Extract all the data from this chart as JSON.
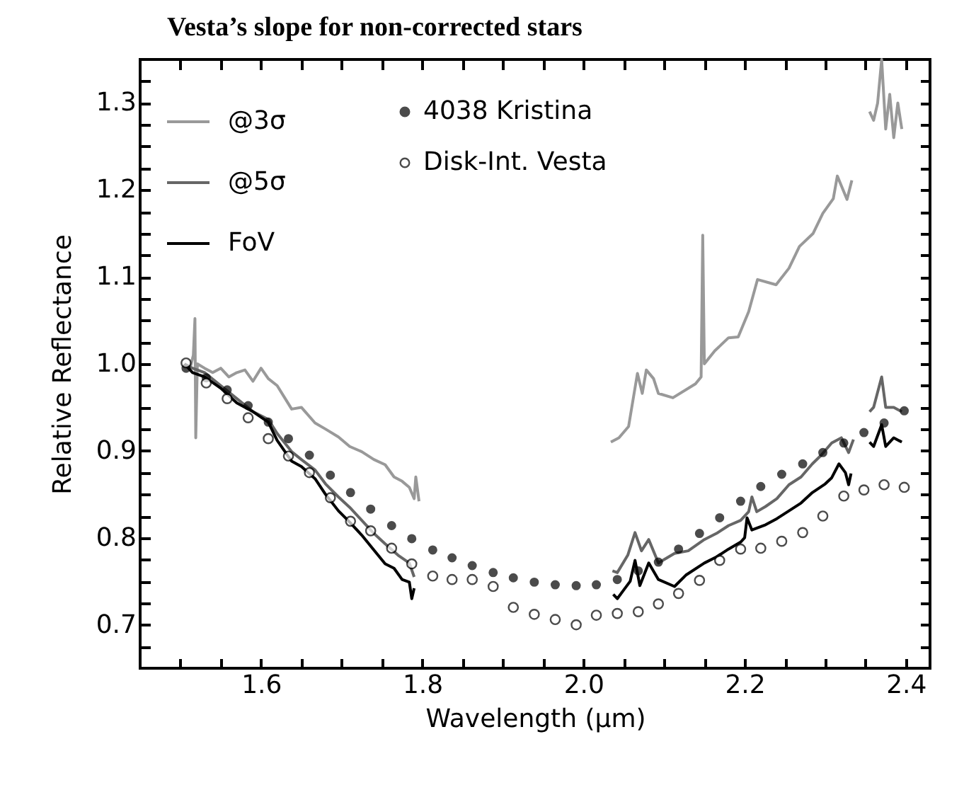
{
  "chart_data": {
    "type": "line",
    "title": "Vesta’s slope for non-corrected stars",
    "xlabel": "Wavelength (μm)",
    "ylabel": "Relative Reflectance",
    "xlim": [
      1.45,
      2.43
    ],
    "ylim": [
      0.65,
      1.35
    ],
    "xticks": [
      {
        "value": 1.5,
        "label": null
      },
      {
        "value": 1.55,
        "label": null
      },
      1.6,
      {
        "value": 1.65,
        "label": null
      },
      {
        "value": 1.7,
        "label": null
      },
      {
        "value": 1.75,
        "label": null
      },
      1.8,
      {
        "value": 1.85,
        "label": null
      },
      {
        "value": 1.9,
        "label": null
      },
      {
        "value": 1.95,
        "label": null
      },
      {
        "value": 2,
        "label": "2.0"
      },
      {
        "value": 2.05,
        "label": null
      },
      {
        "value": 2.1,
        "label": null
      },
      {
        "value": 2.15,
        "label": null
      },
      2.2,
      {
        "value": 2.25,
        "label": null
      },
      {
        "value": 2.3,
        "label": null
      },
      {
        "value": 2.35,
        "label": null
      },
      2.4
    ],
    "yticks": [
      {
        "value": 0.675,
        "label": null
      },
      0.7,
      {
        "value": 0.725,
        "label": null
      },
      {
        "value": 0.75,
        "label": null
      },
      {
        "value": 0.775,
        "label": null
      },
      0.8,
      {
        "value": 0.825,
        "label": null
      },
      {
        "value": 0.85,
        "label": null
      },
      {
        "value": 0.875,
        "label": null
      },
      0.9,
      {
        "value": 0.925,
        "label": null
      },
      {
        "value": 0.95,
        "label": null
      },
      {
        "value": 0.975,
        "label": null
      },
      {
        "value": 1,
        "label": "1.0"
      },
      {
        "value": 1.025,
        "label": null
      },
      {
        "value": 1.05,
        "label": null
      },
      {
        "value": 1.075,
        "label": null
      },
      1.1,
      {
        "value": 1.125,
        "label": null
      },
      {
        "value": 1.15,
        "label": null
      },
      {
        "value": 1.175,
        "label": null
      },
      1.2,
      {
        "value": 1.225,
        "label": null
      },
      {
        "value": 1.25,
        "label": null
      },
      {
        "value": 1.275,
        "label": null
      },
      1.3,
      {
        "value": 1.325,
        "label": null
      }
    ],
    "grid": false,
    "legend": "top left",
    "line_style": "solid",
    "series": [
      {
        "name": "@3σ",
        "marker": "none",
        "color": "#999999",
        "x": [
          1.505,
          1.512,
          1.516,
          1.518,
          1.519,
          1.521,
          1.53,
          1.54,
          1.55,
          1.56,
          1.57,
          1.58,
          1.59,
          1.6,
          1.609,
          1.62,
          1.63,
          1.638,
          1.65,
          1.667,
          1.68,
          1.696,
          1.71,
          1.725,
          1.74,
          1.754,
          1.765,
          1.775,
          1.784,
          1.79,
          1.792,
          1.796,
          1.9,
          2.034,
          2.044,
          2.056,
          2.067,
          2.073,
          2.078,
          2.087,
          2.093,
          2.111,
          2.139,
          2.146,
          2.148,
          2.15,
          2.163,
          2.18,
          2.192,
          2.205,
          2.216,
          2.239,
          2.255,
          2.268,
          2.285,
          2.297,
          2.31,
          2.315,
          2.327,
          2.333,
          2.34,
          2.355,
          2.36,
          2.365,
          2.37,
          2.375,
          2.38,
          2.385,
          2.39,
          2.395
        ],
        "values": [
          1.0,
          0.995,
          1.01,
          1.052,
          0.915,
          1.0,
          0.995,
          0.99,
          0.995,
          0.985,
          0.99,
          0.993,
          0.98,
          0.995,
          0.983,
          0.975,
          0.96,
          0.948,
          0.95,
          0.932,
          0.925,
          0.916,
          0.905,
          0.899,
          0.89,
          0.884,
          0.87,
          0.865,
          0.858,
          0.845,
          0.87,
          0.842,
          null,
          0.91,
          0.915,
          0.928,
          0.989,
          0.966,
          0.993,
          0.983,
          0.966,
          0.961,
          0.977,
          0.985,
          1.148,
          1.0,
          1.015,
          1.03,
          1.031,
          1.06,
          1.097,
          1.091,
          1.11,
          1.135,
          1.15,
          1.173,
          1.19,
          1.216,
          1.189,
          1.211,
          null,
          1.29,
          1.28,
          1.3,
          1.35,
          1.27,
          1.31,
          1.26,
          1.3,
          1.27
        ]
      },
      {
        "name": "@5σ",
        "marker": "none",
        "color": "#666666",
        "x": [
          1.505,
          1.515,
          1.53,
          1.55,
          1.57,
          1.59,
          1.609,
          1.62,
          1.638,
          1.65,
          1.667,
          1.68,
          1.696,
          1.71,
          1.725,
          1.74,
          1.754,
          1.77,
          1.784,
          1.79,
          1.9,
          2.036,
          2.042,
          2.055,
          2.064,
          2.072,
          2.081,
          2.093,
          2.113,
          2.13,
          2.15,
          2.165,
          2.18,
          2.195,
          2.205,
          2.209,
          2.215,
          2.226,
          2.24,
          2.255,
          2.27,
          2.284,
          2.295,
          2.308,
          2.32,
          2.329,
          2.335,
          2.345,
          2.355,
          2.36,
          2.37,
          2.375,
          2.385,
          2.395
        ],
        "values": [
          1.0,
          0.995,
          0.99,
          0.975,
          0.96,
          0.945,
          0.936,
          0.92,
          0.899,
          0.89,
          0.878,
          0.862,
          0.847,
          0.835,
          0.82,
          0.805,
          0.793,
          0.78,
          0.771,
          0.755,
          null,
          0.762,
          0.76,
          0.78,
          0.806,
          0.785,
          0.798,
          0.771,
          0.782,
          0.785,
          0.798,
          0.805,
          0.814,
          0.82,
          0.83,
          0.847,
          0.83,
          0.836,
          0.845,
          0.861,
          0.87,
          0.885,
          0.895,
          0.909,
          0.915,
          0.898,
          0.913,
          null,
          0.945,
          0.95,
          0.985,
          0.95,
          0.95,
          0.945
        ]
      },
      {
        "name": "FoV",
        "marker": "none",
        "color": "#000000",
        "x": [
          1.505,
          1.515,
          1.53,
          1.55,
          1.57,
          1.59,
          1.609,
          1.62,
          1.638,
          1.65,
          1.667,
          1.68,
          1.696,
          1.71,
          1.725,
          1.74,
          1.754,
          1.765,
          1.775,
          1.784,
          1.787,
          1.79,
          1.9,
          2.037,
          2.042,
          2.05,
          2.058,
          2.064,
          2.07,
          2.081,
          2.093,
          2.113,
          2.127,
          2.15,
          2.165,
          2.18,
          2.195,
          2.2,
          2.203,
          2.209,
          2.226,
          2.24,
          2.255,
          2.27,
          2.284,
          2.3,
          2.308,
          2.317,
          2.325,
          2.329,
          2.332,
          2.345,
          2.355,
          2.36,
          2.37,
          2.375,
          2.385,
          2.395
        ],
        "values": [
          1.0,
          0.99,
          0.985,
          0.972,
          0.955,
          0.945,
          0.933,
          0.912,
          0.888,
          0.882,
          0.868,
          0.85,
          0.831,
          0.818,
          0.803,
          0.786,
          0.77,
          0.765,
          0.752,
          0.749,
          0.73,
          0.742,
          null,
          0.735,
          0.73,
          0.74,
          0.75,
          0.774,
          0.745,
          0.771,
          0.752,
          0.744,
          0.757,
          0.771,
          0.778,
          0.787,
          0.795,
          0.8,
          0.823,
          0.809,
          0.815,
          0.822,
          0.831,
          0.84,
          0.852,
          0.862,
          0.869,
          0.885,
          0.875,
          0.861,
          0.874,
          null,
          0.91,
          0.905,
          0.93,
          0.905,
          0.915,
          0.91
        ]
      },
      {
        "name": "4038 Kristina",
        "type": "scatter",
        "marker": "circle",
        "color": "#000000",
        "x": [
          1.507,
          1.532,
          1.558,
          1.584,
          1.609,
          1.634,
          1.66,
          1.686,
          1.711,
          1.736,
          1.762,
          1.787,
          1.813,
          1.837,
          1.862,
          1.888,
          1.913,
          1.939,
          1.965,
          1.991,
          2.016,
          2.042,
          2.068,
          2.093,
          2.118,
          2.144,
          2.169,
          2.195,
          2.22,
          2.246,
          2.272,
          2.297,
          2.323,
          2.348,
          2.373,
          2.398
        ],
        "values": [
          0.995,
          0.984,
          0.97,
          0.952,
          0.933,
          0.914,
          0.895,
          0.872,
          0.852,
          0.833,
          0.814,
          0.799,
          0.786,
          0.777,
          0.768,
          0.76,
          0.754,
          0.749,
          0.746,
          0.745,
          0.746,
          0.752,
          0.762,
          0.772,
          0.787,
          0.805,
          0.823,
          0.842,
          0.859,
          0.873,
          0.885,
          0.898,
          0.909,
          0.921,
          0.932,
          0.946
        ]
      },
      {
        "name": "Disk-Int. Vesta",
        "type": "scatter",
        "marker": "circle",
        "color": "#ffffff",
        "x": [
          1.507,
          1.532,
          1.558,
          1.584,
          1.609,
          1.634,
          1.66,
          1.686,
          1.711,
          1.736,
          1.762,
          1.787,
          1.813,
          1.837,
          1.862,
          1.888,
          1.913,
          1.939,
          1.965,
          1.991,
          2.016,
          2.042,
          2.068,
          2.093,
          2.118,
          2.144,
          2.169,
          2.195,
          2.22,
          2.246,
          2.272,
          2.297,
          2.323,
          2.348,
          2.373,
          2.398
        ],
        "values": [
          1.001,
          0.978,
          0.96,
          0.938,
          0.914,
          0.894,
          0.875,
          0.846,
          0.819,
          0.808,
          0.788,
          0.77,
          0.756,
          0.752,
          0.752,
          0.744,
          0.72,
          0.712,
          0.706,
          0.7,
          0.711,
          0.713,
          0.715,
          0.724,
          0.736,
          0.751,
          0.774,
          0.787,
          0.788,
          0.796,
          0.806,
          0.825,
          0.848,
          0.855,
          0.861,
          0.858
        ]
      }
    ]
  }
}
